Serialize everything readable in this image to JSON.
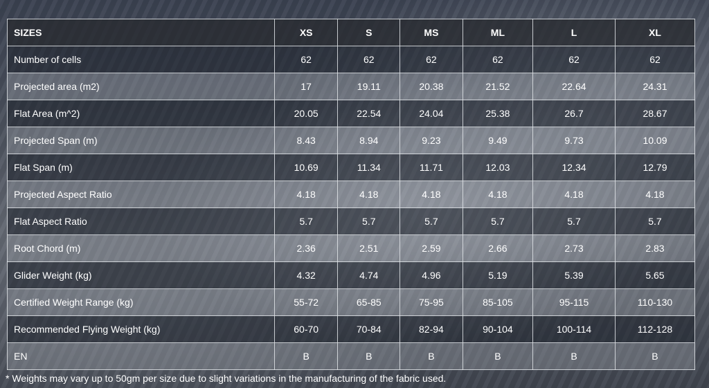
{
  "table": {
    "headers": [
      "SIZES",
      "XS",
      "S",
      "MS",
      "ML",
      "L",
      "XL"
    ],
    "rows": [
      [
        "Number of cells",
        "62",
        "62",
        "62",
        "62",
        "62",
        "62"
      ],
      [
        "Projected area (m2)",
        "17",
        "19.11",
        "20.38",
        "21.52",
        "22.64",
        "24.31"
      ],
      [
        "Flat Area (m^2)",
        "20.05",
        "22.54",
        "24.04",
        "25.38",
        "26.7",
        "28.67"
      ],
      [
        "Projected Span (m)",
        "8.43",
        "8.94",
        "9.23",
        "9.49",
        "9.73",
        "10.09"
      ],
      [
        "Flat Span (m)",
        "10.69",
        "11.34",
        "11.71",
        "12.03",
        "12.34",
        "12.79"
      ],
      [
        "Projected Aspect Ratio",
        "4.18",
        "4.18",
        "4.18",
        "4.18",
        "4.18",
        "4.18"
      ],
      [
        "Flat Aspect Ratio",
        "5.7",
        "5.7",
        "5.7",
        "5.7",
        "5.7",
        "5.7"
      ],
      [
        "Root Chord (m)",
        "2.36",
        "2.51",
        "2.59",
        "2.66",
        "2.73",
        "2.83"
      ],
      [
        "Glider Weight (kg)",
        "4.32",
        "4.74",
        "4.96",
        "5.19",
        "5.39",
        "5.65"
      ],
      [
        "Certified Weight Range (kg)",
        "55-72",
        "65-85",
        "75-95",
        "85-105",
        "95-115",
        "110-130"
      ],
      [
        "Recommended Flying Weight (kg)",
        "60-70",
        "70-84",
        "82-94",
        "90-104",
        "100-114",
        "112-128"
      ],
      [
        "EN",
        "B",
        "B",
        "B",
        "B",
        "B",
        "B"
      ]
    ]
  },
  "footnote": "* Weights may vary up to 50gm per size due to slight variations in the manufacturing of the fabric used."
}
